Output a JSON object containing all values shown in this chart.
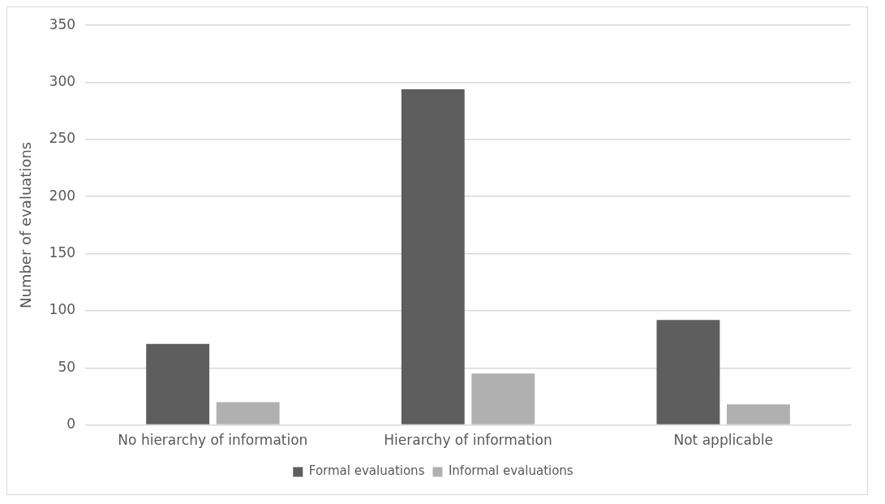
{
  "chart_data": {
    "type": "bar",
    "ylabel": "Number of evaluations",
    "categories": [
      "No hierarchy of information",
      "Hierarchy of information",
      "Not applicable"
    ],
    "series": [
      {
        "name": "Formal evaluations",
        "color": "#5e5e5e",
        "values": [
          71,
          294,
          92
        ]
      },
      {
        "name": "Informal evaluations",
        "color": "#b0b0b0",
        "values": [
          20,
          45,
          18
        ]
      }
    ],
    "ylim": [
      0,
      350
    ],
    "yticks": [
      0,
      50,
      100,
      150,
      200,
      250,
      300,
      350
    ],
    "grid": "y",
    "legend": "bottom"
  }
}
